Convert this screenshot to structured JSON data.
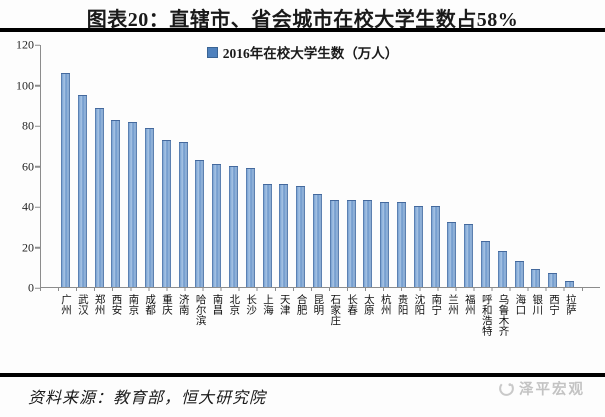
{
  "header": {
    "title": "图表20：直辖市、省会城市在校大学生数占58%"
  },
  "legend": {
    "label": "2016年在校大学生数（万人）"
  },
  "footer": {
    "source": "资料来源：教育部，恒大研究院",
    "watermark": "泽平宏观"
  },
  "colors": {
    "bar_fill": "#4f81bd",
    "bar_edge": "#44699d",
    "bar_highlight": "#a9c5e5",
    "axis": "#8c8c8c",
    "divider": "#000000",
    "watermark_gray": "#c3c3c3"
  },
  "chart_data": {
    "type": "bar",
    "title": "2016年在校大学生数（万人）",
    "legend_position": "top",
    "unit": "万人",
    "grid": false,
    "xlabel": "",
    "ylabel": "",
    "ylim": [
      0,
      120
    ],
    "yticks": [
      0,
      20,
      40,
      60,
      80,
      100,
      120
    ],
    "categories": [
      "广州",
      "武汉",
      "郑州",
      "西安",
      "南京",
      "成都",
      "重庆",
      "济南",
      "哈尔滨",
      "南昌",
      "北京",
      "长沙",
      "上海",
      "天津",
      "合肥",
      "昆明",
      "石家庄",
      "长春",
      "太原",
      "杭州",
      "贵阳",
      "沈阳",
      "南宁",
      "兰州",
      "福州",
      "呼和浩特",
      "乌鲁木齐",
      "海口",
      "银川",
      "西宁",
      "拉萨"
    ],
    "values": [
      106,
      95,
      89,
      83,
      82,
      79,
      73,
      72,
      63,
      61,
      60,
      59,
      51,
      51,
      50,
      46,
      43,
      43,
      43,
      42,
      42,
      40,
      40,
      32,
      31,
      23,
      18,
      13,
      9,
      7,
      3
    ]
  }
}
